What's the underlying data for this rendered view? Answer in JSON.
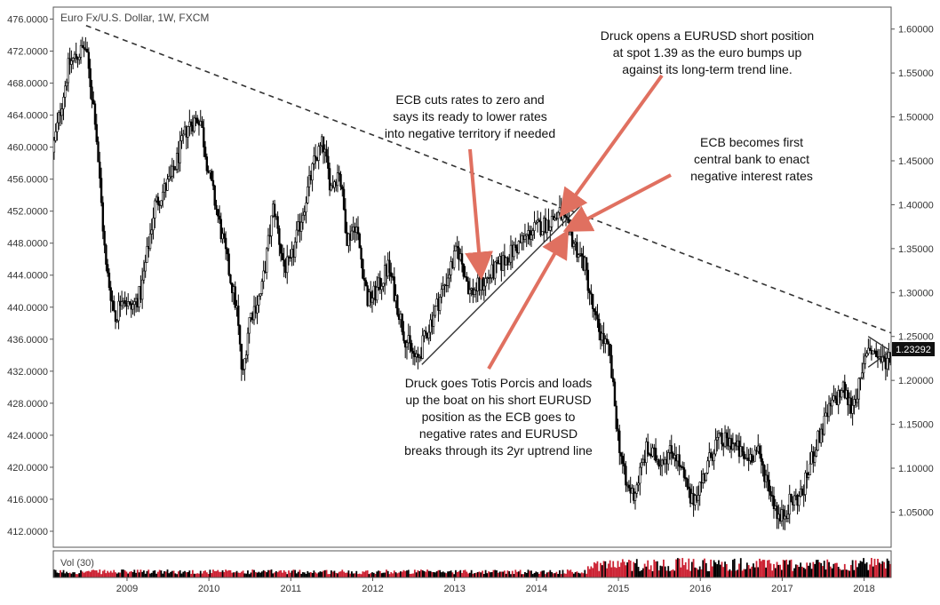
{
  "chart_data": {
    "type": "candlestick",
    "title": "Euro Fx/U.S. Dollar, 1W, FXCM",
    "volume_label": "Vol (30)",
    "last_price_label": "1.23292",
    "colors": {
      "up": "#000000",
      "down": "#cc2233",
      "arrow": "#e07060",
      "volume_up": "#000000",
      "volume_down": "#cc2233",
      "trend": "#333333"
    },
    "y_left": {
      "ticks": [
        "412.0000",
        "416.0000",
        "420.0000",
        "424.0000",
        "428.0000",
        "432.0000",
        "436.0000",
        "440.0000",
        "444.0000",
        "448.0000",
        "452.0000",
        "456.0000",
        "460.0000",
        "464.0000",
        "468.0000",
        "472.0000",
        "476.0000"
      ],
      "range": [
        410.0,
        477.5
      ]
    },
    "y_right": {
      "ticks": [
        "1.05000",
        "1.10000",
        "1.15000",
        "1.20000",
        "1.25000",
        "1.30000",
        "1.35000",
        "1.40000",
        "1.45000",
        "1.50000",
        "1.55000",
        "1.60000"
      ],
      "tick_values": [
        1.05,
        1.1,
        1.15,
        1.2,
        1.25,
        1.3,
        1.35,
        1.4,
        1.45,
        1.5,
        1.55,
        1.6
      ],
      "range": [
        1.01,
        1.625
      ]
    },
    "x_axis": {
      "ticks": [
        "2009",
        "2010",
        "2011",
        "2012",
        "2013",
        "2014",
        "2015",
        "2016",
        "2017",
        "2018"
      ],
      "tick_years": [
        2009,
        2010,
        2011,
        2012,
        2013,
        2014,
        2015,
        2016,
        2017,
        2018
      ],
      "range": [
        2008.1,
        2018.33
      ]
    },
    "price_path": [
      [
        2008.1,
        1.46
      ],
      [
        2008.3,
        1.56
      ],
      [
        2008.5,
        1.58
      ],
      [
        2008.62,
        1.5
      ],
      [
        2008.75,
        1.33
      ],
      [
        2008.87,
        1.27
      ],
      [
        2008.95,
        1.3
      ],
      [
        2009.05,
        1.28
      ],
      [
        2009.18,
        1.3
      ],
      [
        2009.35,
        1.4
      ],
      [
        2009.55,
        1.43
      ],
      [
        2009.75,
        1.49
      ],
      [
        2009.9,
        1.5
      ],
      [
        2010.0,
        1.44
      ],
      [
        2010.2,
        1.35
      ],
      [
        2010.35,
        1.28
      ],
      [
        2010.42,
        1.2
      ],
      [
        2010.5,
        1.27
      ],
      [
        2010.65,
        1.3
      ],
      [
        2010.8,
        1.4
      ],
      [
        2010.92,
        1.33
      ],
      [
        2011.0,
        1.33
      ],
      [
        2011.1,
        1.37
      ],
      [
        2011.3,
        1.45
      ],
      [
        2011.4,
        1.47
      ],
      [
        2011.5,
        1.42
      ],
      [
        2011.6,
        1.44
      ],
      [
        2011.7,
        1.36
      ],
      [
        2011.8,
        1.38
      ],
      [
        2011.95,
        1.29
      ],
      [
        2012.05,
        1.3
      ],
      [
        2012.2,
        1.33
      ],
      [
        2012.4,
        1.25
      ],
      [
        2012.55,
        1.22
      ],
      [
        2012.65,
        1.25
      ],
      [
        2012.85,
        1.3
      ],
      [
        2013.05,
        1.35
      ],
      [
        2013.2,
        1.3
      ],
      [
        2013.35,
        1.31
      ],
      [
        2013.55,
        1.33
      ],
      [
        2013.75,
        1.35
      ],
      [
        2013.95,
        1.37
      ],
      [
        2014.15,
        1.38
      ],
      [
        2014.3,
        1.39
      ],
      [
        2014.45,
        1.36
      ],
      [
        2014.6,
        1.33
      ],
      [
        2014.72,
        1.27
      ],
      [
        2014.9,
        1.23
      ],
      [
        2015.0,
        1.14
      ],
      [
        2015.1,
        1.08
      ],
      [
        2015.2,
        1.07
      ],
      [
        2015.35,
        1.12
      ],
      [
        2015.5,
        1.11
      ],
      [
        2015.7,
        1.12
      ],
      [
        2015.9,
        1.06
      ],
      [
        2016.05,
        1.09
      ],
      [
        2016.2,
        1.13
      ],
      [
        2016.4,
        1.13
      ],
      [
        2016.55,
        1.11
      ],
      [
        2016.7,
        1.12
      ],
      [
        2016.85,
        1.08
      ],
      [
        2016.98,
        1.04
      ],
      [
        2017.1,
        1.06
      ],
      [
        2017.25,
        1.07
      ],
      [
        2017.4,
        1.12
      ],
      [
        2017.6,
        1.17
      ],
      [
        2017.75,
        1.19
      ],
      [
        2017.85,
        1.17
      ],
      [
        2017.98,
        1.2
      ],
      [
        2018.05,
        1.24
      ],
      [
        2018.15,
        1.23
      ],
      [
        2018.25,
        1.22
      ],
      [
        2018.33,
        1.23
      ]
    ],
    "trend_lines": [
      {
        "name": "long-term-resistance",
        "style": "dashed",
        "from": [
          2008.5,
          1.604
        ],
        "to": [
          2018.33,
          1.254
        ]
      },
      {
        "name": "2yr-uptrend",
        "style": "solid",
        "from": [
          2012.6,
          1.218
        ],
        "to": [
          2014.55,
          1.4
        ]
      },
      {
        "name": "wedge-top",
        "style": "solid",
        "from": [
          2018.05,
          1.25
        ],
        "to": [
          2018.3,
          1.235
        ]
      },
      {
        "name": "wedge-bottom",
        "style": "solid",
        "from": [
          2018.05,
          1.215
        ],
        "to": [
          2018.3,
          1.232
        ]
      }
    ],
    "annotations": [
      {
        "id": "druck-opens",
        "lines": [
          "Druck opens a EURUSD short position",
          "at spot 1.39 as the euro bumps up",
          "against its long-term trend line."
        ],
        "arrow_to": [
          2014.33,
          1.392
        ]
      },
      {
        "id": "ecb-cuts",
        "lines": [
          "ECB cuts rates to zero and",
          "says its ready to lower rates",
          "into negative territory if needed"
        ],
        "arrow_to": [
          2013.32,
          1.322
        ]
      },
      {
        "id": "ecb-negative",
        "lines": [
          "ECB becomes first",
          "central bank to enact",
          "negative interest rates"
        ],
        "arrow_to": [
          2014.4,
          1.373
        ]
      },
      {
        "id": "druck-totis",
        "lines": [
          "Druck goes Totis Porcis and loads",
          "up the boat on his short EURUSD",
          "position as the ECB goes to",
          "negative rates and EURUSD",
          "breaks through its 2yr uptrend line"
        ],
        "arrow_to": [
          2014.35,
          1.365
        ]
      }
    ]
  }
}
